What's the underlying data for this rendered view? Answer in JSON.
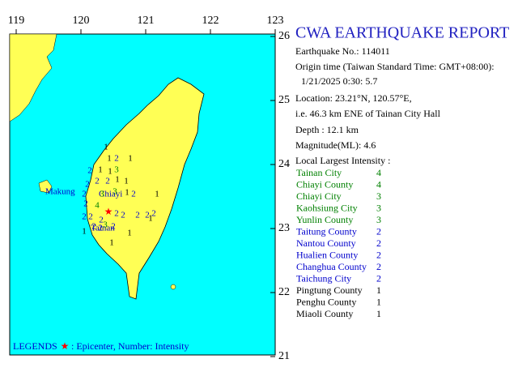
{
  "map": {
    "lon_ticks": [
      119,
      120,
      121,
      122,
      123
    ],
    "lat_ticks": [
      26,
      25,
      24,
      23,
      22,
      21
    ],
    "place_labels": [
      "Makung",
      "Chiayi",
      "Tainan"
    ],
    "station_intensities": [
      1,
      2,
      1,
      1,
      2,
      1,
      1,
      3,
      2,
      2,
      1,
      1,
      2,
      2,
      3,
      3,
      1,
      2,
      1,
      2,
      4,
      2,
      2,
      2,
      2,
      2,
      2,
      2,
      2,
      2,
      3,
      2,
      1,
      1,
      1,
      1,
      2
    ],
    "legend": {
      "title": "LEGENDS",
      "text": ": Epicenter, Number: Intensity"
    }
  },
  "report": {
    "title": "CWA EARTHQUAKE REPORT",
    "lines": [
      "Earthquake No.: 114011",
      "Origin time (Taiwan Standard Time: GMT+08:00):",
      "1/21/2025  0:30: 5.7",
      "Location: 23.21°N, 120.57°E,",
      "i.e. 46.3 km ENE of Tainan City Hall",
      "Depth : 12.1 km",
      "Magnitude(ML): 4.6"
    ],
    "intensity_heading": "Local Largest Intensity :",
    "intensities": [
      {
        "area": "Tainan City",
        "level": 4
      },
      {
        "area": "Chiayi County",
        "level": 4
      },
      {
        "area": "Chiayi City",
        "level": 3
      },
      {
        "area": "Kaohsiung City",
        "level": 3
      },
      {
        "area": "Yunlin County",
        "level": 3
      },
      {
        "area": "Taitung County",
        "level": 2
      },
      {
        "area": "Nantou County",
        "level": 2
      },
      {
        "area": "Hualien County",
        "level": 2
      },
      {
        "area": "Changhua County",
        "level": 2
      },
      {
        "area": "Taichung City",
        "level": 2
      },
      {
        "area": "Pingtung County",
        "level": 1
      },
      {
        "area": "Penghu County",
        "level": 1
      },
      {
        "area": "Miaoli County",
        "level": 1
      }
    ]
  }
}
